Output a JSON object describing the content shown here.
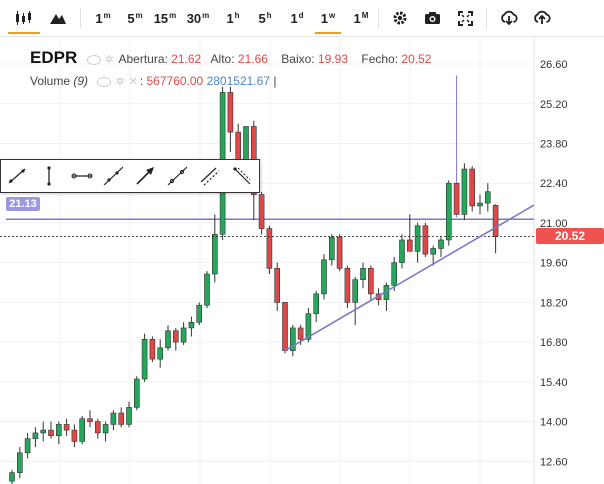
{
  "toolbar": {
    "chart_type_icons": [
      "candlestick-icon",
      "mountain-icon"
    ],
    "timeframes": [
      {
        "label": "1",
        "sup": "m",
        "active": false
      },
      {
        "label": "5",
        "sup": "m",
        "active": false
      },
      {
        "label": "15",
        "sup": "m",
        "active": false
      },
      {
        "label": "30",
        "sup": "m",
        "active": false
      },
      {
        "label": "1",
        "sup": "h",
        "active": false
      },
      {
        "label": "5",
        "sup": "h",
        "active": false
      },
      {
        "label": "1",
        "sup": "d",
        "active": false
      },
      {
        "label": "1",
        "sup": "w",
        "active": true
      },
      {
        "label": "1",
        "sup": "M",
        "active": false
      }
    ],
    "right_icons": [
      "gear-icon",
      "camera-icon",
      "fullscreen-icon",
      "download-icon",
      "upload-icon"
    ]
  },
  "legend": {
    "symbol": "EDPR",
    "open_label": "Abertura:",
    "open": "21.62",
    "high_label": "Alto:",
    "high": "21.66",
    "low_label": "Baixo:",
    "low": "19.93",
    "close_label": "Fecho:",
    "close": "20.52",
    "volume_label": "Volume",
    "volume_period": "(9)",
    "volume_value": "567760.00",
    "volume_avg": "2801521.67"
  },
  "price_axis": {
    "ticks": [
      "26.60",
      "25.20",
      "23.80",
      "22.40",
      "21.00",
      "19.60",
      "18.20",
      "16.80",
      "15.40",
      "14.00",
      "12.60"
    ],
    "current_price": "20.52",
    "horizontal_line_label": "21.13"
  },
  "drawing_tools": [
    "trend-line-icon",
    "vertical-line-icon",
    "horizontal-segment-icon",
    "ray-icon",
    "arrow-icon",
    "extended-line-icon",
    "parallel-channel-icon",
    "fib-retracement-icon"
  ],
  "colors": {
    "up": "#26a65b",
    "down": "#e04848",
    "line": "#7b78c8",
    "current_price_bg": "#ef5350",
    "hline_bg": "#9b98e0"
  },
  "chart_data": {
    "type": "candlestick",
    "ylim": [
      11.8,
      27.2
    ],
    "ohlc": [
      [
        11.9,
        12.3,
        11.6,
        12.2
      ],
      [
        12.2,
        13.1,
        12.0,
        12.9
      ],
      [
        12.9,
        13.6,
        12.7,
        13.4
      ],
      [
        13.4,
        13.8,
        13.1,
        13.6
      ],
      [
        13.6,
        14.0,
        13.3,
        13.7
      ],
      [
        13.7,
        14.0,
        13.4,
        13.5
      ],
      [
        13.5,
        14.0,
        13.2,
        13.9
      ],
      [
        13.9,
        14.1,
        13.5,
        13.7
      ],
      [
        13.7,
        13.9,
        13.1,
        13.3
      ],
      [
        13.3,
        14.2,
        13.2,
        14.1
      ],
      [
        14.1,
        14.4,
        13.8,
        14.0
      ],
      [
        14.0,
        14.1,
        13.4,
        13.6
      ],
      [
        13.6,
        14.0,
        13.3,
        13.9
      ],
      [
        13.9,
        14.4,
        13.7,
        14.3
      ],
      [
        14.3,
        14.5,
        13.8,
        13.9
      ],
      [
        13.9,
        14.7,
        13.8,
        14.5
      ],
      [
        14.5,
        15.6,
        14.4,
        15.5
      ],
      [
        15.5,
        17.1,
        15.4,
        16.9
      ],
      [
        16.9,
        17.0,
        16.1,
        16.2
      ],
      [
        16.2,
        16.9,
        15.9,
        16.6
      ],
      [
        16.6,
        17.4,
        16.5,
        17.2
      ],
      [
        17.2,
        17.3,
        16.5,
        16.8
      ],
      [
        16.8,
        17.5,
        16.7,
        17.3
      ],
      [
        17.3,
        17.7,
        17.0,
        17.5
      ],
      [
        17.5,
        18.2,
        17.4,
        18.1
      ],
      [
        18.1,
        19.3,
        18.0,
        19.2
      ],
      [
        19.2,
        21.3,
        18.9,
        20.6
      ],
      [
        20.6,
        25.8,
        20.4,
        25.6
      ],
      [
        25.6,
        25.8,
        23.5,
        24.2
      ],
      [
        24.2,
        24.5,
        22.6,
        23.1
      ],
      [
        23.1,
        24.4,
        22.4,
        24.4
      ],
      [
        24.4,
        24.6,
        21.1,
        22.0
      ],
      [
        22.0,
        22.1,
        20.6,
        20.8
      ],
      [
        20.8,
        20.9,
        19.2,
        19.4
      ],
      [
        19.4,
        19.6,
        17.9,
        18.2
      ],
      [
        18.2,
        18.2,
        16.4,
        16.5
      ],
      [
        16.5,
        17.4,
        16.3,
        17.3
      ],
      [
        17.3,
        17.4,
        16.7,
        16.9
      ],
      [
        16.9,
        18.0,
        16.8,
        17.8
      ],
      [
        17.8,
        18.6,
        17.5,
        18.5
      ],
      [
        18.5,
        19.9,
        18.3,
        19.7
      ],
      [
        19.7,
        20.6,
        19.5,
        20.5
      ],
      [
        20.5,
        20.6,
        19.3,
        19.4
      ],
      [
        19.4,
        19.5,
        18.0,
        18.2
      ],
      [
        18.2,
        19.1,
        17.4,
        19.0
      ],
      [
        19.0,
        19.6,
        18.7,
        19.4
      ],
      [
        19.4,
        19.5,
        18.3,
        18.5
      ],
      [
        18.5,
        18.7,
        18.1,
        18.3
      ],
      [
        18.3,
        18.9,
        17.9,
        18.8
      ],
      [
        18.8,
        19.8,
        18.6,
        19.6
      ],
      [
        19.6,
        20.6,
        19.4,
        20.4
      ],
      [
        20.4,
        21.3,
        20.0,
        20.0
      ],
      [
        20.0,
        21.0,
        19.6,
        20.9
      ],
      [
        20.9,
        21.0,
        19.8,
        19.9
      ],
      [
        19.9,
        20.2,
        19.5,
        20.1
      ],
      [
        20.1,
        20.5,
        19.8,
        20.4
      ],
      [
        20.4,
        22.5,
        20.2,
        22.4
      ],
      [
        22.4,
        22.6,
        21.2,
        21.3
      ],
      [
        21.3,
        23.1,
        21.1,
        22.9
      ],
      [
        22.9,
        23.0,
        21.4,
        21.6
      ],
      [
        21.6,
        22.0,
        21.3,
        21.7
      ],
      [
        21.7,
        22.4,
        21.4,
        22.1
      ],
      [
        21.62,
        21.66,
        19.93,
        20.52
      ]
    ],
    "trendline": [
      [
        35,
        16.5
      ],
      [
        63,
        21.0
      ]
    ],
    "spike": {
      "index": 57,
      "high": 26.2
    }
  }
}
